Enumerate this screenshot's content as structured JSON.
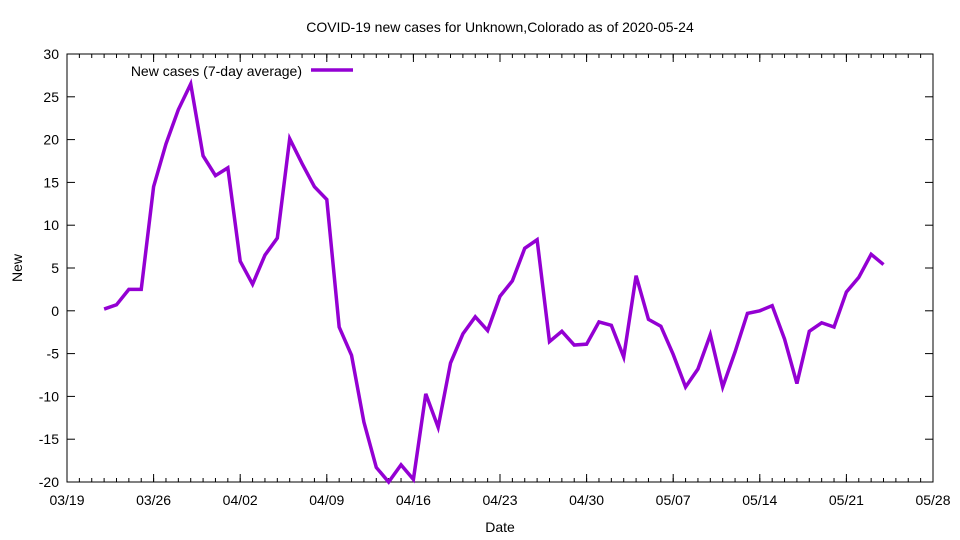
{
  "chart_data": {
    "type": "line",
    "title": "COVID-19 new cases for Unknown,Colorado as of 2020-05-24",
    "xlabel": "Date",
    "ylabel": "New",
    "ylim": [
      -20,
      30
    ],
    "xlim": [
      "2020-03-19",
      "2020-05-28"
    ],
    "yticks": [
      -20,
      -15,
      -10,
      -5,
      0,
      5,
      10,
      15,
      20,
      25,
      30
    ],
    "xticks": [
      {
        "date": "2020-03-19",
        "label": "03/19"
      },
      {
        "date": "2020-03-26",
        "label": "03/26"
      },
      {
        "date": "2020-04-02",
        "label": "04/02"
      },
      {
        "date": "2020-04-09",
        "label": "04/09"
      },
      {
        "date": "2020-04-16",
        "label": "04/16"
      },
      {
        "date": "2020-04-23",
        "label": "04/23"
      },
      {
        "date": "2020-04-30",
        "label": "04/30"
      },
      {
        "date": "2020-05-07",
        "label": "05/07"
      },
      {
        "date": "2020-05-14",
        "label": "05/14"
      },
      {
        "date": "2020-05-21",
        "label": "05/21"
      },
      {
        "date": "2020-05-28",
        "label": "05/28"
      }
    ],
    "legend": "top-left",
    "grid": false,
    "series": [
      {
        "name": "New cases (7-day average)",
        "color": "#9400d3",
        "start_date": "2020-03-22",
        "values": [
          0.2,
          0.7,
          2.5,
          2.5,
          14.5,
          19.5,
          23.5,
          26.5,
          18.1,
          15.8,
          16.7,
          5.8,
          3.1,
          6.5,
          8.5,
          20.1,
          17.2,
          14.5,
          13.0,
          -1.9,
          -5.2,
          -13.0,
          -18.3,
          -20.0,
          -18.0,
          -19.7,
          -9.7,
          -13.6,
          -6.1,
          -2.7,
          -0.7,
          -2.3,
          1.7,
          3.5,
          7.3,
          8.3,
          -3.6,
          -2.4,
          -4.0,
          -3.9,
          -1.3,
          -1.7,
          -5.4,
          4.1,
          -1.0,
          -1.8,
          -5.1,
          -8.9,
          -6.8,
          -2.8,
          -8.9,
          -4.8,
          -0.3,
          0.0,
          0.6,
          -3.3,
          -8.5,
          -2.4,
          -1.4,
          -1.9,
          2.2,
          3.9,
          6.6,
          5.4
        ]
      }
    ]
  }
}
